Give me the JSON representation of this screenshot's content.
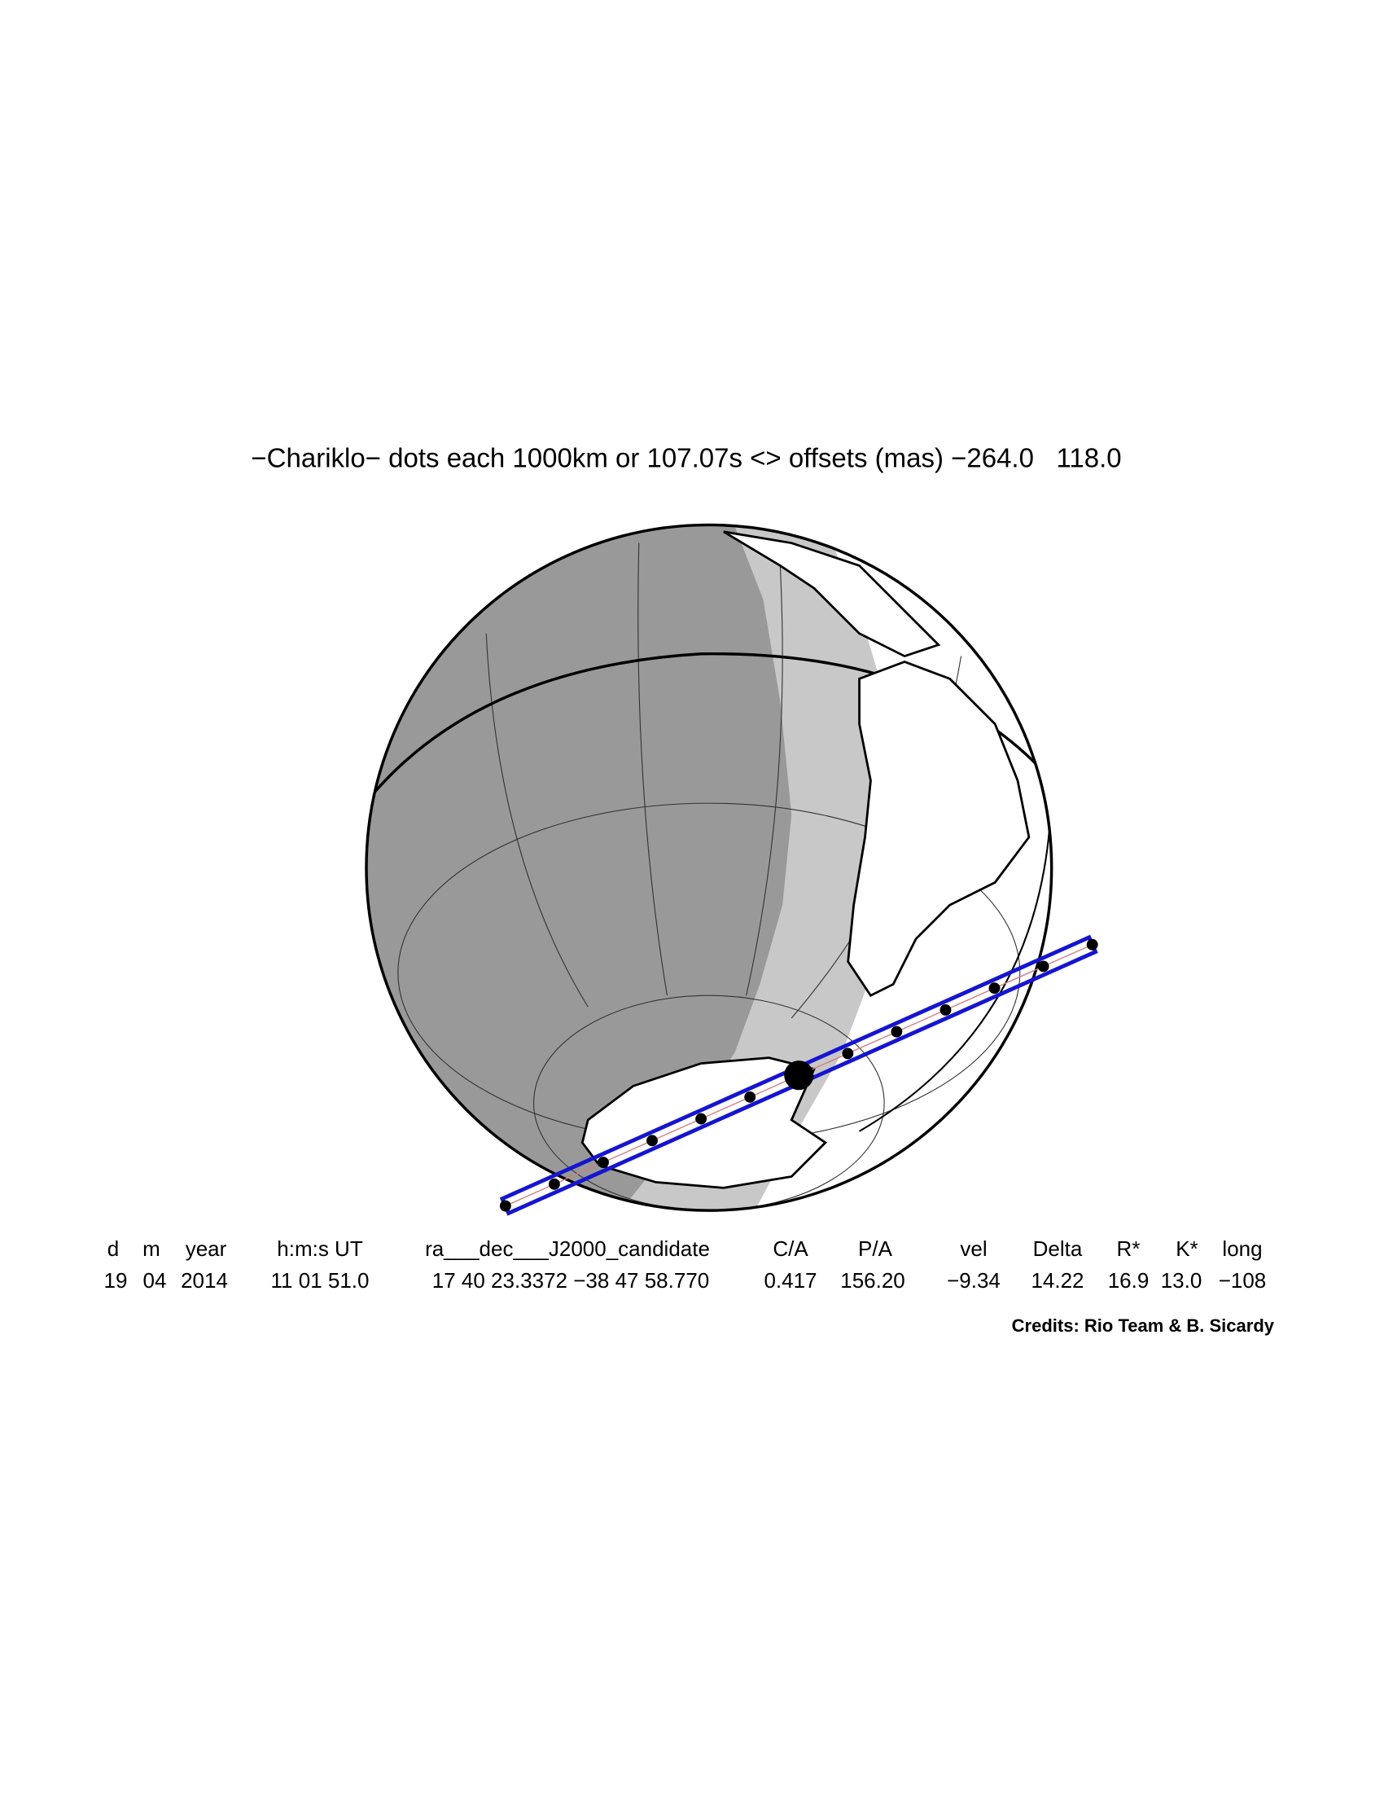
{
  "title": "−Chariklo− dots each 1000km or 107.07s <> offsets (mas) −264.0   118.0",
  "table": {
    "header": [
      "d",
      "m",
      "year",
      "h:m:s UT",
      "ra___dec___J2000_candidate",
      "C/A",
      "P/A",
      "vel",
      "Delta",
      "R*",
      "K*",
      "long"
    ],
    "row": [
      "19",
      "04",
      "2014",
      "11 01 51.0",
      "17 40 23.3372 −38 47 58.770",
      "0.417",
      "156.20",
      "−9.34",
      "14.22",
      "16.9",
      "13.0",
      "−108"
    ]
  },
  "credits": "Credits: Rio Team & B. Sicardy"
}
